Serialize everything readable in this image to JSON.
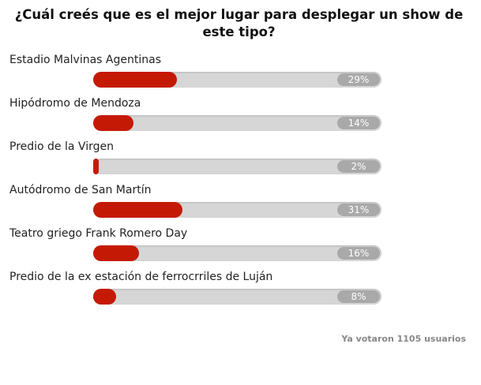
{
  "poll": {
    "question": "¿Cuál creés que es el mejor lugar para desplegar un show de este tipo?",
    "bar_color": "#c41a05",
    "options": [
      {
        "label": "Estadio Malvinas Agentinas",
        "percent": 29,
        "percent_label": "29%"
      },
      {
        "label": "Hipódromo de Mendoza",
        "percent": 14,
        "percent_label": "14%"
      },
      {
        "label": "Predio de la Virgen",
        "percent": 2,
        "percent_label": "2%"
      },
      {
        "label": "Autódromo de San Martín",
        "percent": 31,
        "percent_label": "31%"
      },
      {
        "label": "Teatro griego Frank Romero Day",
        "percent": 16,
        "percent_label": "16%"
      },
      {
        "label": "Predio de la ex estación de ferrocrriles de Luján",
        "percent": 8,
        "percent_label": "8%"
      }
    ],
    "footer": "Ya votaron 1105 usuarios"
  }
}
